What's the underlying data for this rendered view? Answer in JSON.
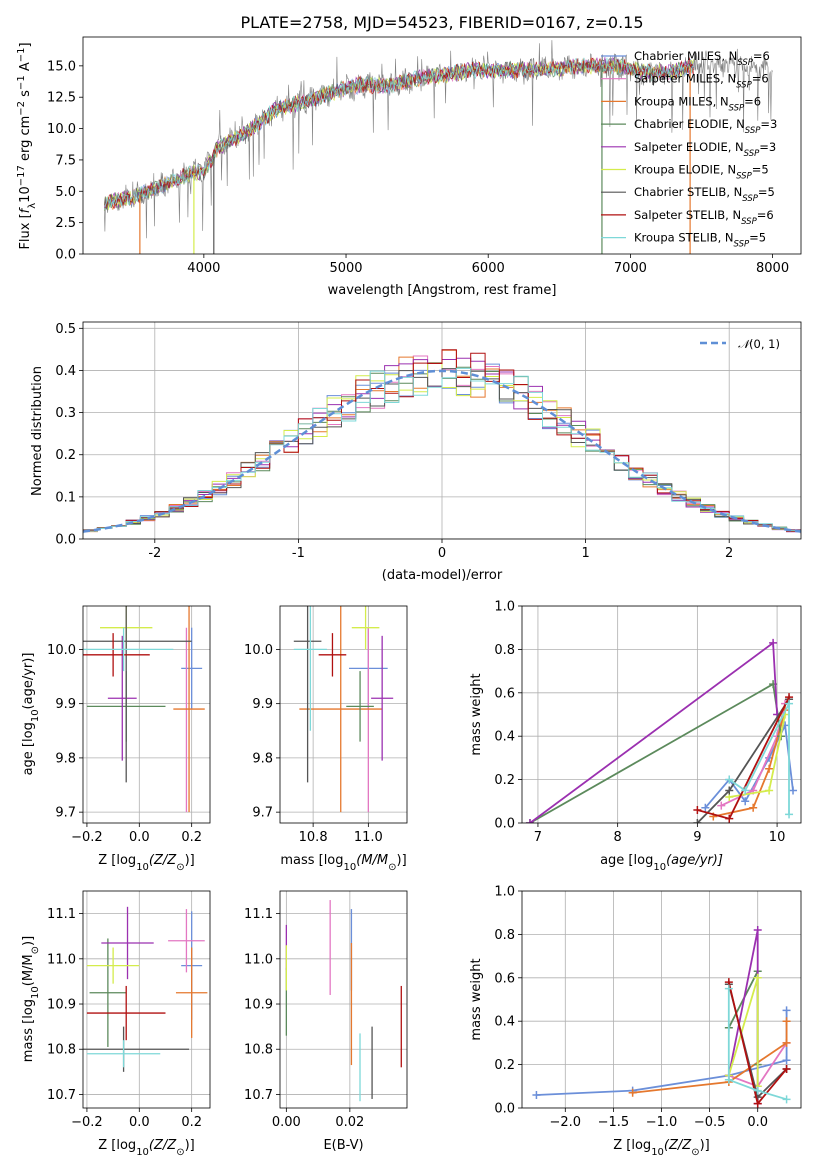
{
  "title": "PLATE=2758, MJD=54523, FIBERID=0167, z=0.15",
  "colors": {
    "chabrier_miles": "#6b8fd9",
    "salpeter_miles": "#e377c2",
    "kroupa_miles": "#e5782e",
    "chabrier_elodie": "#5c8a5c",
    "salpeter_elodie": "#9b30b0",
    "kroupa_elodie": "#d4ec4c",
    "chabrier_stelib": "#555555",
    "salpeter_stelib": "#b01010",
    "kroupa_stelib": "#7ed8d8",
    "data": "#808080",
    "normal": "#5f8fd6"
  },
  "chart_data": [
    {
      "id": "spectrum",
      "type": "line",
      "xlabel": "wavelength [Angstrom, rest frame]",
      "ylabel_parts": [
        "Flux [",
        "f",
        "λ",
        "10",
        "−17",
        " erg cm",
        "−2",
        " s",
        "−1",
        " A",
        "−1",
        "]"
      ],
      "xlim": [
        3150,
        8200
      ],
      "ylim": [
        0,
        17.3
      ],
      "xticks": [
        4000,
        5000,
        6000,
        7000,
        8000
      ],
      "yticks": [
        0.0,
        2.5,
        5.0,
        7.5,
        10.0,
        12.5,
        15.0
      ],
      "legend_placement": "upper right",
      "legend": [
        {
          "name": "Chabrier MILES",
          "nssp": "6",
          "color_key": "chabrier_miles"
        },
        {
          "name": "Salpeter MILES",
          "nssp": "6",
          "color_key": "salpeter_miles"
        },
        {
          "name": "Kroupa MILES",
          "nssp": "6",
          "color_key": "kroupa_miles"
        },
        {
          "name": "Chabrier ELODIE",
          "nssp": "3",
          "color_key": "chabrier_elodie"
        },
        {
          "name": "Salpeter ELODIE",
          "nssp": "3",
          "color_key": "salpeter_elodie"
        },
        {
          "name": "Kroupa ELODIE",
          "nssp": "5",
          "color_key": "kroupa_elodie"
        },
        {
          "name": "Chabrier STELIB",
          "nssp": "5",
          "color_key": "chabrier_stelib"
        },
        {
          "name": "Salpeter STELIB",
          "nssp": "6",
          "color_key": "salpeter_stelib"
        },
        {
          "name": "Kroupa STELIB",
          "nssp": "5",
          "color_key": "kroupa_stelib"
        }
      ],
      "continuum": [
        [
          3300,
          4.1
        ],
        [
          3500,
          4.5
        ],
        [
          3700,
          5.4
        ],
        [
          3900,
          6.4
        ],
        [
          4000,
          6.6
        ],
        [
          4100,
          8.5
        ],
        [
          4300,
          9.7
        ],
        [
          4500,
          11.5
        ],
        [
          4700,
          12.1
        ],
        [
          4900,
          12.9
        ],
        [
          5100,
          13.5
        ],
        [
          5300,
          13.4
        ],
        [
          5500,
          14.0
        ],
        [
          5700,
          14.3
        ],
        [
          5900,
          14.7
        ],
        [
          6100,
          14.6
        ],
        [
          6300,
          14.7
        ],
        [
          6500,
          14.8
        ],
        [
          6700,
          15.0
        ],
        [
          6900,
          15.0
        ],
        [
          7100,
          14.5
        ],
        [
          7300,
          14.5
        ],
        [
          7500,
          15.2
        ],
        [
          7700,
          15.0
        ],
        [
          7900,
          14.8
        ],
        [
          8000,
          14.5
        ]
      ],
      "models_xrange": [
        3300,
        7450
      ],
      "dips": [
        {
          "x": 3550,
          "y": 0.0,
          "series": "kroupa_miles"
        },
        {
          "x": 3930,
          "y": 0.0,
          "series": "kroupa_elodie"
        },
        {
          "x": 4070,
          "y": 0.0,
          "series": "chabrier_stelib"
        },
        {
          "x": 6800,
          "y": 0.0,
          "series": "chabrier_elodie"
        },
        {
          "x": 7420,
          "y": 0.0,
          "series": "kroupa_miles"
        }
      ]
    },
    {
      "id": "residuals",
      "type": "step-histogram",
      "xlabel": "(data-model)/error",
      "ylabel": "Normed distribution",
      "xlim": [
        -2.5,
        2.5
      ],
      "ylim": [
        0,
        0.515
      ],
      "xticks": [
        -2,
        -1,
        0,
        1,
        2
      ],
      "yticks": [
        0.0,
        0.1,
        0.2,
        0.3,
        0.4,
        0.5
      ],
      "grid": true,
      "bin_width": 0.1,
      "legend": [
        {
          "name_prefix": "𝒩",
          "name_suffix": "(0, 1)",
          "style": "dashed",
          "color_key": "normal"
        }
      ],
      "legend_placement": "upper right"
    },
    {
      "id": "age_vs_Z",
      "type": "errorbar",
      "xlabel_parts": [
        "Z [log",
        "10",
        "(Z/Z",
        "⊙",
        ")]"
      ],
      "ylabel_parts": [
        "age  [log",
        "10",
        "(age/yr)]"
      ],
      "xlim": [
        -0.215,
        0.27
      ],
      "ylim": [
        9.68,
        10.08
      ],
      "xticks": [
        -0.2,
        0.0,
        0.2
      ],
      "xticklabels": [
        "−0.2",
        "0.0",
        "0.2"
      ],
      "yticks": [
        9.7,
        9.8,
        9.9,
        10.0
      ],
      "grid": true,
      "points": [
        {
          "x": 0.2,
          "y": 9.965,
          "xerr": 0.04,
          "yerr": 0.075,
          "color_key": "chabrier_miles"
        },
        {
          "x": 0.18,
          "y": 9.87,
          "xerr": 0.0,
          "yerr": 0.17,
          "color_key": "salpeter_miles"
        },
        {
          "x": 0.19,
          "y": 9.89,
          "xerr": 0.06,
          "yerr": 0.19,
          "color_key": "kroupa_miles"
        },
        {
          "x": -0.05,
          "y": 9.895,
          "xerr": 0.15,
          "yerr": 0.065,
          "color_key": "chabrier_elodie"
        },
        {
          "x": -0.065,
          "y": 9.91,
          "xerr": 0.055,
          "yerr": 0.115,
          "color_key": "salpeter_elodie"
        },
        {
          "x": -0.05,
          "y": 10.04,
          "xerr": 0.1,
          "yerr": 0.04,
          "color_key": "kroupa_elodie"
        },
        {
          "x": -0.05,
          "y": 10.015,
          "xerr": 0.25,
          "yerr": 0.26,
          "color_key": "chabrier_stelib"
        },
        {
          "x": -0.1,
          "y": 9.99,
          "xerr": 0.14,
          "yerr": 0.04,
          "color_key": "salpeter_stelib"
        },
        {
          "x": -0.06,
          "y": 10.0,
          "xerr": 0.19,
          "yerr": 0.04,
          "color_key": "kroupa_stelib"
        }
      ]
    },
    {
      "id": "age_vs_mass",
      "type": "errorbar",
      "xlabel_parts": [
        "mass [log",
        "10",
        "(M/M",
        "⊙",
        ")]"
      ],
      "ylim": [
        9.68,
        10.08
      ],
      "xlim": [
        10.68,
        11.14
      ],
      "xticks": [
        10.8,
        11.0
      ],
      "xticklabels": [
        "10.8",
        "11.0"
      ],
      "yticks": [
        9.7,
        9.8,
        9.9,
        10.0
      ],
      "grid": true,
      "points": [
        {
          "x": 11.0,
          "y": 9.965,
          "xerr": 0.07,
          "yerr": 0.075,
          "color_key": "chabrier_miles"
        },
        {
          "x": 11.0,
          "y": 9.87,
          "xerr": 0.0,
          "yerr": 0.17,
          "color_key": "salpeter_miles"
        },
        {
          "x": 10.9,
          "y": 9.89,
          "xerr": 0.15,
          "yerr": 0.19,
          "color_key": "kroupa_miles"
        },
        {
          "x": 10.97,
          "y": 9.895,
          "xerr": 0.05,
          "yerr": 0.065,
          "color_key": "chabrier_elodie"
        },
        {
          "x": 11.05,
          "y": 9.91,
          "xerr": 0.04,
          "yerr": 0.115,
          "color_key": "salpeter_elodie"
        },
        {
          "x": 10.99,
          "y": 10.04,
          "xerr": 0.05,
          "yerr": 0.04,
          "color_key": "kroupa_elodie"
        },
        {
          "x": 10.78,
          "y": 10.015,
          "xerr": 0.05,
          "yerr": 0.26,
          "color_key": "chabrier_stelib"
        },
        {
          "x": 10.87,
          "y": 9.99,
          "xerr": 0.05,
          "yerr": 0.04,
          "color_key": "salpeter_stelib"
        },
        {
          "x": 10.79,
          "y": 10.0,
          "xerr": 0.06,
          "yerr": 0.15,
          "color_key": "kroupa_stelib"
        }
      ]
    },
    {
      "id": "massweight_vs_age",
      "type": "line",
      "xlabel_parts": [
        "age  [log",
        "10",
        "(age/yr)]"
      ],
      "ylabel": "mass weight",
      "xlim": [
        6.8,
        10.3
      ],
      "ylim": [
        0,
        1.0
      ],
      "xticks": [
        7,
        8,
        9,
        10
      ],
      "yticks": [
        0.0,
        0.2,
        0.4,
        0.6,
        0.8,
        1.0
      ],
      "grid": true,
      "series": [
        {
          "color_key": "chabrier_miles",
          "points": [
            [
              9.1,
              0.07
            ],
            [
              9.4,
              0.2
            ],
            [
              9.6,
              0.1
            ],
            [
              9.9,
              0.3
            ],
            [
              10.1,
              0.45
            ],
            [
              10.2,
              0.15
            ]
          ]
        },
        {
          "color_key": "salpeter_miles",
          "points": [
            [
              9.3,
              0.08
            ],
            [
              9.7,
              0.15
            ],
            [
              10.0,
              0.4
            ],
            [
              10.1,
              0.55
            ]
          ]
        },
        {
          "color_key": "kroupa_miles",
          "points": [
            [
              9.2,
              0.03
            ],
            [
              9.7,
              0.07
            ],
            [
              9.9,
              0.25
            ],
            [
              10.1,
              0.52
            ]
          ]
        },
        {
          "color_key": "chabrier_elodie",
          "points": [
            [
              6.9,
              0.0
            ],
            [
              9.95,
              0.64
            ],
            [
              10.05,
              0.4
            ]
          ]
        },
        {
          "color_key": "salpeter_elodie",
          "points": [
            [
              6.9,
              0.0
            ],
            [
              9.95,
              0.83
            ],
            [
              10.0,
              0.5
            ]
          ]
        },
        {
          "color_key": "kroupa_elodie",
          "points": [
            [
              9.4,
              0.12
            ],
            [
              9.9,
              0.15
            ],
            [
              10.1,
              0.5
            ]
          ]
        },
        {
          "color_key": "chabrier_stelib",
          "points": [
            [
              9.0,
              0.0
            ],
            [
              9.4,
              0.15
            ],
            [
              10.15,
              0.57
            ]
          ]
        },
        {
          "color_key": "salpeter_stelib",
          "points": [
            [
              9.0,
              0.06
            ],
            [
              9.4,
              0.02
            ],
            [
              10.15,
              0.58
            ]
          ]
        },
        {
          "color_key": "kroupa_stelib",
          "points": [
            [
              9.4,
              0.2
            ],
            [
              9.6,
              0.15
            ],
            [
              10.15,
              0.55
            ],
            [
              10.15,
              0.04
            ]
          ]
        }
      ]
    },
    {
      "id": "mass_vs_Z",
      "type": "errorbar",
      "xlabel_parts": [
        "Z [log",
        "10",
        "(Z/Z",
        "⊙",
        ")]"
      ],
      "ylabel_parts": [
        "mass [log",
        "10",
        "(M/M",
        "⊙",
        ")]"
      ],
      "xlim": [
        -0.215,
        0.27
      ],
      "ylim": [
        10.67,
        11.15
      ],
      "xticks": [
        -0.2,
        0.0,
        0.2
      ],
      "xticklabels": [
        "−0.2",
        "0.0",
        "0.2"
      ],
      "yticks": [
        10.7,
        10.8,
        10.9,
        11.0,
        11.1
      ],
      "grid": true,
      "points": [
        {
          "x": 0.2,
          "y": 10.985,
          "xerr": 0.04,
          "yerr": 0.12,
          "color_key": "chabrier_miles"
        },
        {
          "x": 0.18,
          "y": 11.04,
          "xerr": 0.07,
          "yerr": 0.07,
          "color_key": "salpeter_miles"
        },
        {
          "x": 0.2,
          "y": 10.925,
          "xerr": 0.06,
          "yerr": 0.1,
          "color_key": "kroupa_miles"
        },
        {
          "x": -0.12,
          "y": 10.925,
          "xerr": 0.07,
          "yerr": 0.12,
          "color_key": "chabrier_elodie"
        },
        {
          "x": -0.045,
          "y": 11.035,
          "xerr": 0.1,
          "yerr": 0.08,
          "color_key": "salpeter_elodie"
        },
        {
          "x": -0.1,
          "y": 10.985,
          "xerr": 0.1,
          "yerr": 0.04,
          "color_key": "kroupa_elodie"
        },
        {
          "x": -0.06,
          "y": 10.8,
          "xerr": 0.25,
          "yerr": 0.05,
          "color_key": "chabrier_stelib"
        },
        {
          "x": -0.05,
          "y": 10.88,
          "xerr": 0.15,
          "yerr": 0.06,
          "color_key": "salpeter_stelib"
        },
        {
          "x": -0.06,
          "y": 10.79,
          "xerr": 0.14,
          "yerr": 0.03,
          "color_key": "kroupa_stelib"
        }
      ]
    },
    {
      "id": "mass_vs_ebv",
      "type": "errorbar",
      "xlabel": "E(B-V)",
      "xlim": [
        -0.002,
        0.038
      ],
      "ylim": [
        10.67,
        11.15
      ],
      "xticks": [
        0.0,
        0.02
      ],
      "xticklabels": [
        "0.00",
        "0.02"
      ],
      "yticks": [
        10.7,
        10.8,
        10.9,
        11.0,
        11.1
      ],
      "grid": true,
      "points": [
        {
          "x": 0.0205,
          "y": 11.02,
          "yerr": 0.09,
          "color_key": "chabrier_miles"
        },
        {
          "x": 0.0138,
          "y": 11.025,
          "yerr": 0.105,
          "color_key": "salpeter_miles"
        },
        {
          "x": 0.0205,
          "y": 10.9,
          "yerr": 0.135,
          "color_key": "kroupa_miles"
        },
        {
          "x": 0.0,
          "y": 10.905,
          "yerr": 0.075,
          "color_key": "chabrier_elodie"
        },
        {
          "x": 0.0,
          "y": 11.025,
          "yerr": 0.05,
          "color_key": "salpeter_elodie"
        },
        {
          "x": 0.0,
          "y": 10.98,
          "yerr": 0.05,
          "color_key": "kroupa_elodie"
        },
        {
          "x": 0.027,
          "y": 10.77,
          "yerr": 0.08,
          "color_key": "chabrier_stelib"
        },
        {
          "x": 0.0362,
          "y": 10.85,
          "yerr": 0.09,
          "color_key": "salpeter_stelib"
        },
        {
          "x": 0.0232,
          "y": 10.76,
          "yerr": 0.075,
          "color_key": "kroupa_stelib"
        }
      ]
    },
    {
      "id": "massweight_vs_Z",
      "type": "line",
      "xlabel_parts": [
        "Z [log",
        "10",
        "(Z/Z",
        "⊙",
        ")]"
      ],
      "ylabel": "mass weight",
      "xlim": [
        -2.45,
        0.45
      ],
      "ylim": [
        0,
        1.0
      ],
      "xticks": [
        -2.0,
        -1.5,
        -1.0,
        -0.5,
        0.0
      ],
      "xticklabels": [
        "−2.0",
        "−1.5",
        "−1.0",
        "−0.5",
        "0.0"
      ],
      "yticks": [
        0.0,
        0.2,
        0.4,
        0.6,
        0.8,
        1.0
      ],
      "grid": true,
      "series": [
        {
          "color_key": "chabrier_miles",
          "points": [
            [
              -2.3,
              0.06
            ],
            [
              -1.3,
              0.08
            ],
            [
              -0.3,
              0.15
            ],
            [
              0.3,
              0.22
            ],
            [
              0.3,
              0.45
            ]
          ]
        },
        {
          "color_key": "salpeter_miles",
          "points": [
            [
              -0.3,
              0.15
            ],
            [
              0.0,
              0.1
            ],
            [
              0.3,
              0.3
            ]
          ]
        },
        {
          "color_key": "kroupa_miles",
          "points": [
            [
              -1.3,
              0.07
            ],
            [
              -0.3,
              0.12
            ],
            [
              0.3,
              0.3
            ],
            [
              0.3,
              0.4
            ]
          ]
        },
        {
          "color_key": "chabrier_elodie",
          "points": [
            [
              -0.3,
              0.37
            ],
            [
              0.0,
              0.63
            ],
            [
              0.0,
              0.2
            ]
          ]
        },
        {
          "color_key": "salpeter_elodie",
          "points": [
            [
              -0.3,
              0.15
            ],
            [
              0.0,
              0.82
            ],
            [
              0.0,
              0.02
            ]
          ]
        },
        {
          "color_key": "kroupa_elodie",
          "points": [
            [
              -0.3,
              0.15
            ],
            [
              0.0,
              0.6
            ],
            [
              0.0,
              0.1
            ]
          ]
        },
        {
          "color_key": "chabrier_stelib",
          "points": [
            [
              -0.3,
              0.57
            ],
            [
              0.0,
              0.05
            ],
            [
              0.3,
              0.18
            ]
          ]
        },
        {
          "color_key": "salpeter_stelib",
          "points": [
            [
              -0.3,
              0.58
            ],
            [
              0.0,
              0.02
            ],
            [
              0.3,
              0.18
            ]
          ]
        },
        {
          "color_key": "kroupa_stelib",
          "points": [
            [
              -0.3,
              0.55
            ],
            [
              -0.3,
              0.13
            ],
            [
              0.0,
              0.08
            ],
            [
              0.3,
              0.04
            ]
          ]
        }
      ]
    }
  ]
}
